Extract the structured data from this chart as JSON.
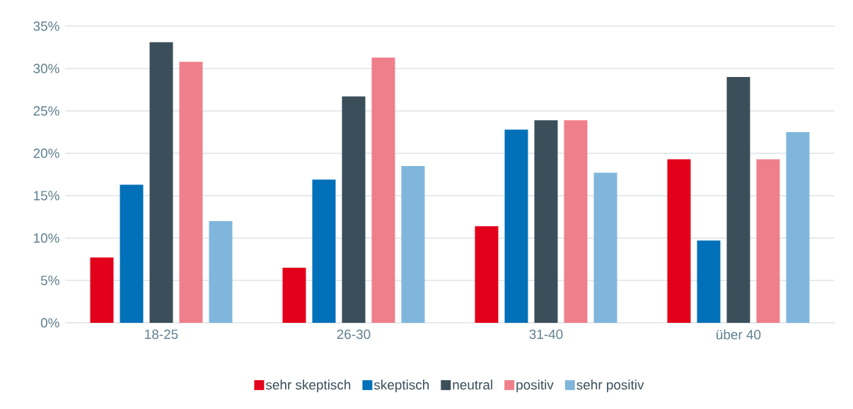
{
  "chart_data": {
    "type": "bar",
    "categories": [
      "18-25",
      "26-30",
      "31-40",
      "über 40"
    ],
    "series": [
      {
        "name": "sehr skeptisch",
        "color": "#e2001a",
        "values": [
          7.7,
          6.5,
          11.4,
          19.3
        ]
      },
      {
        "name": "skeptisch",
        "color": "#0070b8",
        "values": [
          16.3,
          16.9,
          22.8,
          9.7
        ]
      },
      {
        "name": "neutral",
        "color": "#3b4f5a",
        "values": [
          33.1,
          26.7,
          23.9,
          29.0
        ]
      },
      {
        "name": "positiv",
        "color": "#ef7f8a",
        "values": [
          30.8,
          31.3,
          23.9,
          19.3
        ]
      },
      {
        "name": "sehr positiv",
        "color": "#80b6dc",
        "values": [
          12.0,
          18.5,
          17.7,
          22.5
        ]
      }
    ],
    "ylim": [
      0,
      35
    ],
    "yticks": [
      {
        "value": 0,
        "label": "0%"
      },
      {
        "value": 5,
        "label": "5%"
      },
      {
        "value": 10,
        "label": "10%"
      },
      {
        "value": 15,
        "label": "15%"
      },
      {
        "value": 20,
        "label": "20%"
      },
      {
        "value": 25,
        "label": "25%"
      },
      {
        "value": 30,
        "label": "30%"
      },
      {
        "value": 35,
        "label": "35%"
      }
    ],
    "grid": "y",
    "legend": "bottom"
  }
}
